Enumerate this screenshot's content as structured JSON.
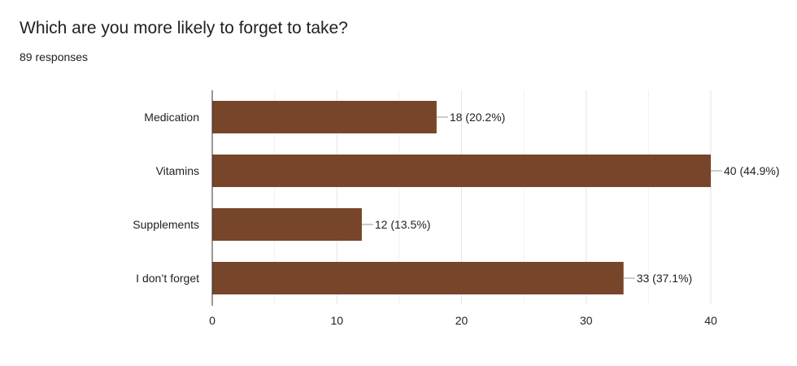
{
  "header": {
    "title": "Which are you more likely to forget to take?",
    "responses": "89 responses"
  },
  "colors": {
    "bar": "#77452A",
    "grid": "#e5e5e5",
    "axis": "#333333",
    "leader": "#999999"
  },
  "chart_data": {
    "type": "bar",
    "orientation": "horizontal",
    "title": "Which are you more likely to forget to take?",
    "subtitle": "89 responses",
    "categories": [
      "Medication",
      "Vitamins",
      "Supplements",
      "I don’t forget"
    ],
    "values": [
      18,
      40,
      12,
      33
    ],
    "percentages": [
      "20.2%",
      "44.9%",
      "13.5%",
      "37.1%"
    ],
    "data_labels": [
      "18 (20.2%)",
      "40 (44.9%)",
      "12 (13.5%)",
      "33 (37.1%)"
    ],
    "xticks": [
      0,
      10,
      20,
      30,
      40
    ],
    "xlim": [
      0,
      40
    ],
    "xlabel": "",
    "ylabel": "",
    "grid": true,
    "legend": "none"
  }
}
